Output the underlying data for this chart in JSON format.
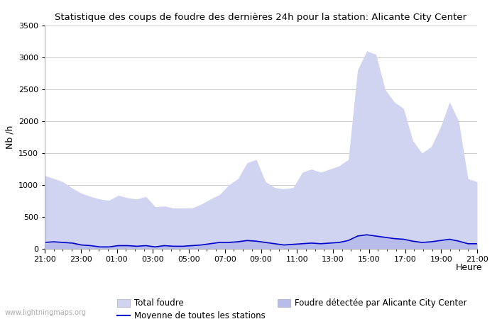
{
  "title": "Statistique des coups de foudre des dernières 24h pour la station: Alicante City Center",
  "xlabel": "Heure",
  "ylabel": "Nb /h",
  "ylim": [
    0,
    3500
  ],
  "yticks": [
    0,
    500,
    1000,
    1500,
    2000,
    2500,
    3000,
    3500
  ],
  "x_labels": [
    "21:00",
    "23:00",
    "01:00",
    "03:00",
    "05:00",
    "07:00",
    "09:00",
    "11:00",
    "13:00",
    "15:00",
    "17:00",
    "19:00",
    "21:00"
  ],
  "watermark": "www.lightningmaps.org",
  "total_foudre_color": "#d0d4f0",
  "detected_foudre_color": "#b8bceb",
  "moyenne_color": "#0000cc",
  "total_foudre": [
    1150,
    1100,
    1050,
    950,
    870,
    820,
    780,
    760,
    840,
    800,
    780,
    820,
    660,
    670,
    640,
    640,
    640,
    700,
    780,
    850,
    1000,
    1100,
    1350,
    1400,
    1050,
    960,
    940,
    960,
    1200,
    1250,
    1200,
    1250,
    1300,
    1400,
    2800,
    3100,
    3050,
    2500,
    2300,
    2200,
    1700,
    1500,
    1600,
    1900,
    2300,
    2000,
    1100,
    1050
  ],
  "detected_foudre": [
    80,
    100,
    100,
    90,
    60,
    50,
    30,
    30,
    50,
    50,
    40,
    50,
    30,
    50,
    40,
    40,
    50,
    60,
    80,
    100,
    120,
    130,
    150,
    130,
    100,
    80,
    60,
    70,
    80,
    90,
    80,
    90,
    100,
    120,
    200,
    220,
    200,
    180,
    160,
    150,
    120,
    100,
    110,
    130,
    150,
    120,
    80,
    80
  ],
  "moyenne": [
    100,
    110,
    100,
    90,
    60,
    50,
    30,
    30,
    50,
    50,
    40,
    50,
    30,
    50,
    40,
    40,
    50,
    60,
    80,
    100,
    100,
    110,
    130,
    120,
    100,
    80,
    60,
    70,
    80,
    90,
    80,
    90,
    100,
    130,
    200,
    220,
    200,
    180,
    160,
    150,
    120,
    100,
    110,
    130,
    150,
    120,
    80,
    80
  ]
}
